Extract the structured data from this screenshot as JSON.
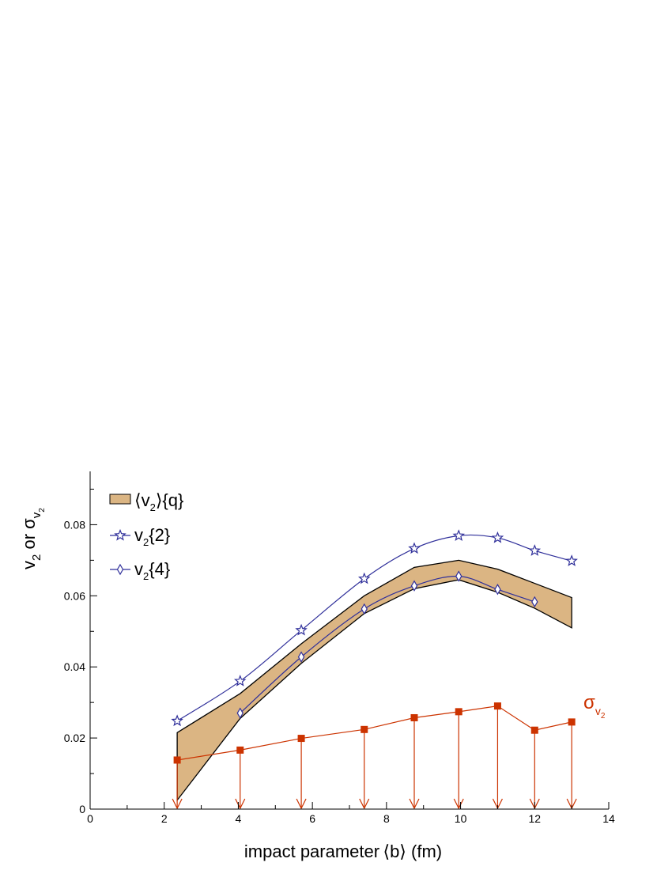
{
  "chart_data": {
    "type": "line",
    "xlabel": "impact parameter ⟨b⟩ (fm)",
    "ylabel": {
      "main": "v",
      "sub1": "2",
      "mid": " or σ",
      "sub2": "v",
      "subsub": "2"
    },
    "xlim": [
      0,
      14
    ],
    "ylim": [
      0,
      0.095
    ],
    "x_ticks": [
      0,
      2,
      4,
      6,
      8,
      10,
      12,
      14
    ],
    "y_ticks": [
      0,
      0.02,
      0.04,
      0.06,
      0.08
    ],
    "x_tick_labels": [
      "0",
      "2",
      "4",
      "6",
      "8",
      "10",
      "12",
      "14"
    ],
    "y_tick_labels": [
      "0",
      "0.02",
      "0.04",
      "0.06",
      "0.08"
    ],
    "grid": false,
    "legend_position": "top-left",
    "legend": [
      {
        "main": "⟨v",
        "sub": "2",
        "rest": "⟩{q}",
        "style": "band"
      },
      {
        "main": "v",
        "sub": "2",
        "rest": "{2}",
        "style": "star"
      },
      {
        "main": "v",
        "sub": "2",
        "rest": "{4}",
        "style": "diamond"
      }
    ],
    "band": {
      "name": "⟨v2⟩{q}",
      "x": [
        2.35,
        4.05,
        5.7,
        7.4,
        8.75,
        9.95,
        11.0,
        12.0,
        13.0
      ],
      "upper": [
        0.0215,
        0.0325,
        0.0465,
        0.06,
        0.068,
        0.07,
        0.0675,
        0.0635,
        0.0595
      ],
      "lower": [
        0.0025,
        0.0255,
        0.041,
        0.055,
        0.062,
        0.0645,
        0.061,
        0.0565,
        0.051
      ],
      "fill": "#dbb583",
      "stroke": "#000000"
    },
    "series": [
      {
        "name": "v2{2}",
        "marker": "star",
        "color": "#2f2f9a",
        "x": [
          2.35,
          4.05,
          5.7,
          7.4,
          8.75,
          9.95,
          11.0,
          12.0,
          13.0
        ],
        "values": [
          0.0248,
          0.036,
          0.0503,
          0.0648,
          0.0733,
          0.0769,
          0.0763,
          0.0727,
          0.0698
        ]
      },
      {
        "name": "v2{4}",
        "marker": "diamond",
        "color": "#2f2f9a",
        "x": [
          4.05,
          5.7,
          7.4,
          8.75,
          9.95,
          11.0,
          12.0
        ],
        "values": [
          0.027,
          0.0428,
          0.0563,
          0.0628,
          0.0655,
          0.0618,
          0.0583
        ]
      },
      {
        "name": "σv2",
        "marker": "square",
        "color": "#cc3300",
        "upper_limit_arrows": true,
        "x": [
          2.35,
          4.05,
          5.7,
          7.4,
          8.75,
          9.95,
          11.0,
          12.0,
          13.0
        ],
        "values": [
          0.0138,
          0.0166,
          0.0199,
          0.0224,
          0.0257,
          0.0274,
          0.029,
          0.0222,
          0.0245
        ]
      }
    ],
    "annotation": {
      "main": "σ",
      "sub": "v",
      "subsub": "2",
      "color": "#cc3300"
    }
  }
}
